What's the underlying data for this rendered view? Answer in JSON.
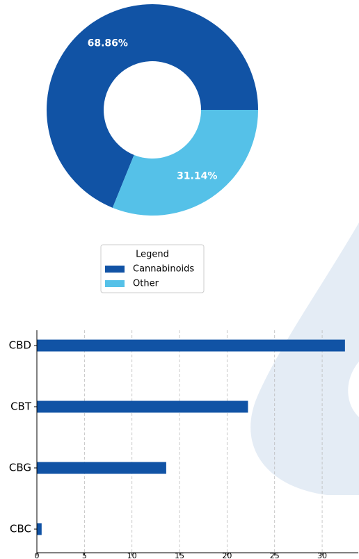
{
  "chart_data": [
    {
      "type": "pie",
      "donut": true,
      "categories": [
        "Cannabinoids",
        "Other"
      ],
      "values": [
        68.86,
        31.14
      ],
      "value_labels": [
        "68.86%",
        "31.14%"
      ],
      "colors": [
        "#1153a5",
        "#55c1e8"
      ],
      "legend_title": "Legend"
    },
    {
      "type": "barh",
      "categories": [
        "CBD",
        "CBT",
        "CBG",
        "CBC"
      ],
      "values": [
        32.4,
        22.2,
        13.6,
        0.5
      ],
      "color": "#1153a5",
      "xlim": [
        0,
        33.8
      ],
      "xticks": [
        0,
        5,
        10,
        15,
        20,
        25,
        30
      ],
      "grid": true
    }
  ]
}
